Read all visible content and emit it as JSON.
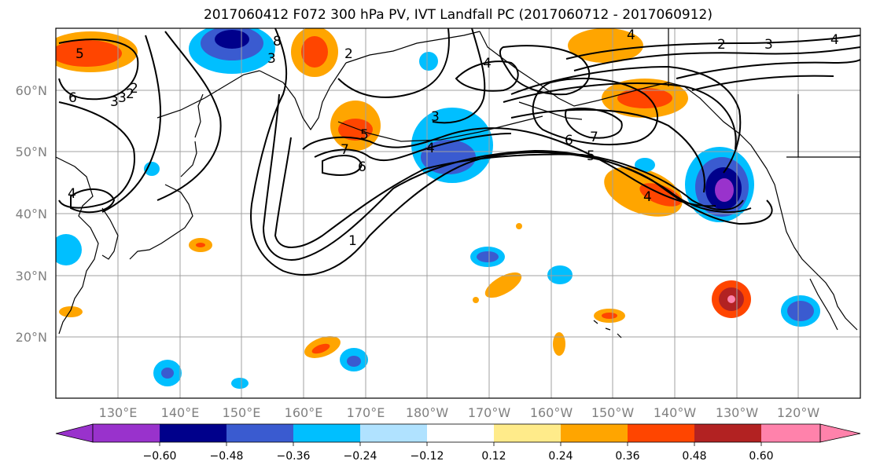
{
  "title": "2017060412 F072 300 hPa PV, IVT Landfall PC (2017060712 - 2017060912)",
  "map": {
    "lat_labels": [
      "60°N",
      "50°N",
      "40°N",
      "30°N",
      "20°N"
    ],
    "lon_labels": [
      "130°E",
      "140°E",
      "150°E",
      "160°E",
      "170°E",
      "180°W",
      "170°W",
      "160°W",
      "150°W",
      "140°W",
      "130°W",
      "120°W"
    ],
    "pv_contour_labels": [
      "5",
      "6",
      "4",
      "3",
      "2",
      "8",
      "3",
      "2",
      "4",
      "3",
      "2",
      "3",
      "4",
      "5",
      "7",
      "6",
      "4",
      "7",
      "6",
      "5",
      "1",
      "4",
      "2",
      "3",
      "4"
    ]
  },
  "colorbar": {
    "tick_labels": [
      "−0.60",
      "−0.48",
      "−0.36",
      "−0.24",
      "−0.12",
      "0.12",
      "0.24",
      "0.36",
      "0.48",
      "0.60"
    ],
    "colors": [
      "#9932cc",
      "#00008b",
      "#3a5bd0",
      "#00bfff",
      "#b0e2ff",
      "#ffffff",
      "#ffeb8a",
      "#ffa500",
      "#ff4500",
      "#b22222",
      "#ff82ab"
    ]
  }
}
